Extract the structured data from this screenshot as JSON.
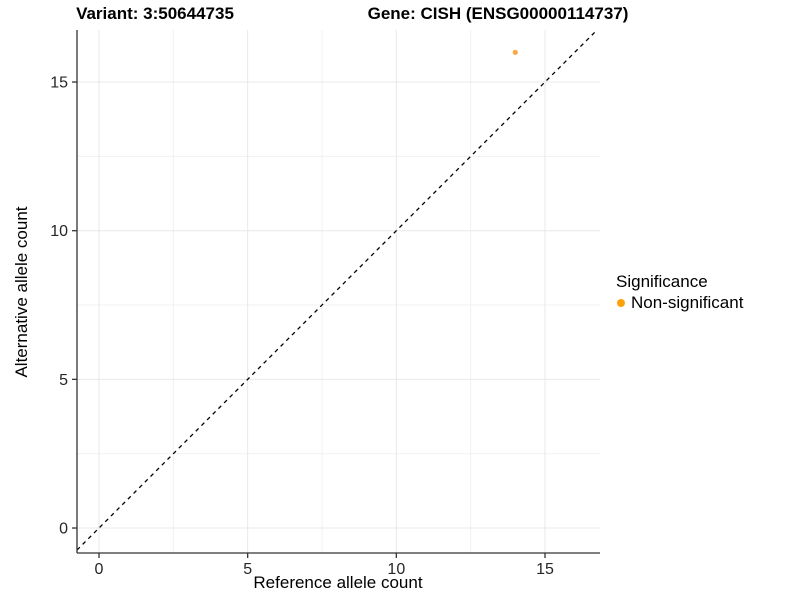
{
  "page": {
    "background": "#FFFFFF"
  },
  "chart_data": {
    "type": "scatter",
    "titles": {
      "left": "Variant: 3:50644735",
      "right": "Gene: CISH (ENSG00000114737)"
    },
    "xlabel": "Reference allele count",
    "ylabel": "Alternative allele count",
    "xlim": [
      -0.74,
      16.85
    ],
    "ylim": [
      -0.84,
      16.75
    ],
    "xticks": [
      0,
      5,
      10,
      15
    ],
    "yticks": [
      0,
      5,
      10,
      15
    ],
    "xminor": [
      2.5,
      7.5,
      12.5
    ],
    "yminor": [
      2.5,
      7.5,
      12.5
    ],
    "grid": {
      "show": true,
      "major_color": "#E8E8E8",
      "minor_color": "#F1F1F1"
    },
    "axis": {
      "line_color": "#333333",
      "tick_color": "#333333",
      "tick_label_color": "#262626",
      "tick_length": 5
    },
    "points": [
      {
        "x": 14,
        "y": 16,
        "series": "Non-significant",
        "color": "#F9A845",
        "radius": 2.6
      }
    ],
    "reference_line": {
      "slope": 1,
      "intercept": 0,
      "style": "dashed",
      "color": "#000000"
    },
    "legend": {
      "title": "Significance",
      "position": "right",
      "items": [
        {
          "label": "Non-significant",
          "color": "#FFA10A"
        }
      ]
    }
  }
}
